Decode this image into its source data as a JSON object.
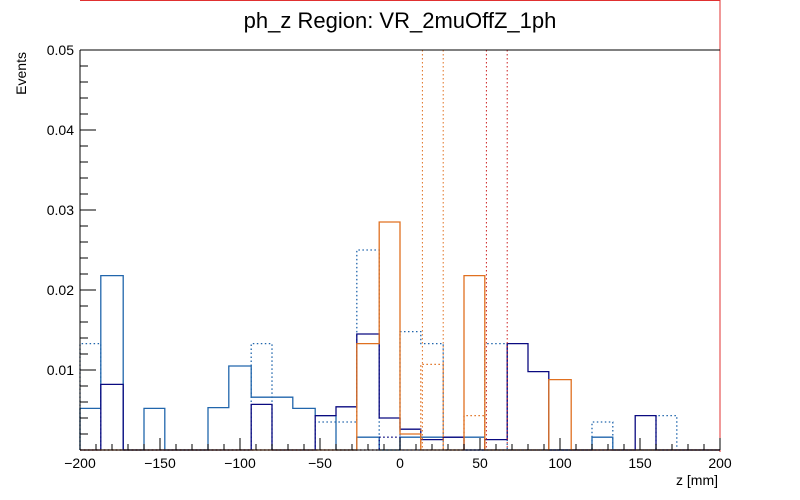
{
  "chart_data": {
    "type": "step-histogram",
    "title": "ph_z Region: VR_2muOffZ_1ph",
    "xlabel": "z [mm]",
    "ylabel": "Events",
    "xlim": [
      -200,
      200
    ],
    "ylim": [
      0,
      0.05
    ],
    "x_ticks": [
      -200,
      -150,
      -100,
      -50,
      0,
      50,
      100,
      150,
      200
    ],
    "y_ticks": [
      0.01,
      0.02,
      0.03,
      0.04,
      0.05
    ],
    "y_tick_labels": [
      "0.01",
      "0.02",
      "0.03",
      "0.04",
      "0.05"
    ],
    "bin_edges": [
      -200,
      -187,
      -173,
      -160,
      -147,
      -133,
      -120,
      -107,
      -93,
      -80,
      -67,
      -53,
      -40,
      -27,
      -13,
      0,
      13,
      27,
      40,
      53,
      67,
      80,
      93,
      107,
      120,
      133,
      147,
      160,
      173,
      187,
      200
    ],
    "colors": {
      "frame": "#000000",
      "pad_border": "#e03030",
      "solid_blue": "#2166ac",
      "dotted_blue": "#2166ac",
      "navy": "#0a0a80",
      "dotted_navy": "#0a0a80",
      "orange": "#e07020",
      "dotted_orange": "#e07020",
      "red_dotted": "#cc2020"
    },
    "series": [
      {
        "style": "solid",
        "color": "#2166ac",
        "values": [
          0.0052,
          0.0218,
          0,
          0.0052,
          0,
          0,
          0.0053,
          0.0105,
          0.0066,
          0.0066,
          0.0052,
          0.0043,
          0,
          0.0016,
          0,
          0.0016,
          0.0016,
          0.0016,
          0.0016,
          0,
          0,
          0,
          0,
          0,
          0.0016,
          0,
          0,
          0,
          0,
          0
        ]
      },
      {
        "style": "dotted",
        "color": "#2166ac",
        "values": [
          0.0133,
          0,
          0,
          0,
          0,
          0,
          0,
          0,
          0.0133,
          0,
          0,
          0.0035,
          0.0035,
          0.025,
          0,
          0.0148,
          0.0133,
          0,
          0,
          0.0133,
          0,
          0,
          0,
          0,
          0.0035,
          0,
          0,
          0.0043,
          0,
          0
        ]
      },
      {
        "style": "solid",
        "color": "#0a0a80",
        "values": [
          0,
          0.0082,
          0,
          0,
          0,
          0,
          0,
          0,
          0.0057,
          0,
          0,
          0.0043,
          0.0054,
          0.0145,
          0.004,
          0.0026,
          0.0013,
          0.0016,
          0,
          0.0013,
          0.0133,
          0.0098,
          0,
          0,
          0,
          0,
          0.0043,
          0,
          0,
          0
        ]
      },
      {
        "style": "dotted",
        "color": "#0a0a80",
        "values": [
          0,
          0,
          0,
          0,
          0,
          0,
          0,
          0,
          0,
          0,
          0,
          0,
          0,
          0,
          0.0016,
          0,
          0,
          0,
          0,
          0,
          0,
          0,
          0,
          0,
          0,
          0,
          0,
          0,
          0,
          0
        ]
      },
      {
        "style": "solid",
        "color": "#e07020",
        "values": [
          0,
          0,
          0,
          0,
          0,
          0,
          0,
          0,
          0,
          0,
          0,
          0,
          0,
          0.0133,
          0.0285,
          0.002,
          0,
          0,
          0.0218,
          0,
          0,
          0,
          0.0088,
          0,
          0,
          0,
          0,
          0,
          0,
          0
        ]
      },
      {
        "style": "dotted",
        "color": "#e07020",
        "values": [
          0,
          0,
          0,
          0,
          0,
          0,
          0,
          0,
          0,
          0,
          0,
          0,
          0,
          0,
          0,
          0,
          0.0107,
          0,
          0.0043,
          0,
          0,
          0,
          0,
          0,
          0,
          0,
          0,
          0,
          0,
          0
        ]
      }
    ],
    "vertical_lines": [
      {
        "x": 14,
        "color": "#e07020",
        "style": "dotted"
      },
      {
        "x": 27,
        "color": "#e07020",
        "style": "dotted"
      },
      {
        "x": 54,
        "color": "#cc2020",
        "style": "dotted"
      },
      {
        "x": 67,
        "color": "#cc2020",
        "style": "dotted"
      }
    ]
  }
}
